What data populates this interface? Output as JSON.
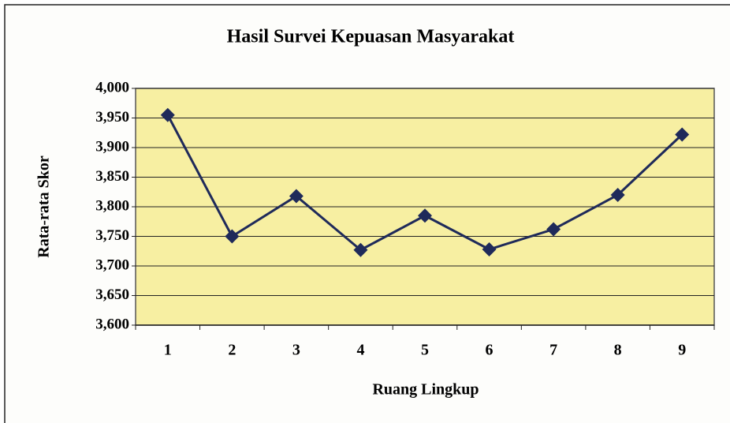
{
  "chart_data": {
    "type": "line",
    "title": "Hasil Survei Kepuasan Masyarakat",
    "x_label": "Ruang Lingkup",
    "y_label": "Rata-rata Skor",
    "categories": [
      "1",
      "2",
      "3",
      "4",
      "5",
      "6",
      "7",
      "8",
      "9"
    ],
    "series": [
      {
        "color": "#1f2a5a",
        "values": [
          3.955,
          3.75,
          3.818,
          3.727,
          3.785,
          3.728,
          3.762,
          3.82,
          3.922
        ]
      }
    ],
    "ylim": [
      3.6,
      4.0
    ],
    "yticks": [
      {
        "value": 3.6,
        "label": "3,600"
      },
      {
        "value": 3.65,
        "label": "3,650"
      },
      {
        "value": 3.7,
        "label": "3,700"
      },
      {
        "value": 3.75,
        "label": "3,750"
      },
      {
        "value": 3.8,
        "label": "3,800"
      },
      {
        "value": 3.85,
        "label": "3,850"
      },
      {
        "value": 3.9,
        "label": "3,900"
      },
      {
        "value": 3.95,
        "label": "3,950"
      },
      {
        "value": 4.0,
        "label": "4,000"
      }
    ],
    "grid": true,
    "plot_background": "#f7efa2"
  }
}
